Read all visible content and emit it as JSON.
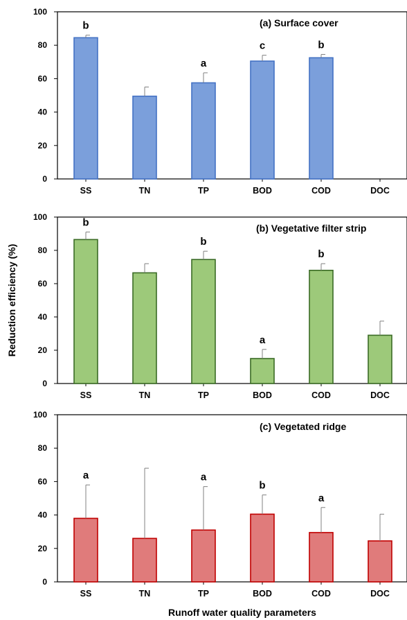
{
  "figure": {
    "ylabel": "Reduction efficiency (%)",
    "xlabel": "Runoff water quality parameters"
  },
  "chart_data": [
    {
      "type": "bar",
      "title": "(a) Surface cover",
      "categories": [
        "SS",
        "TN",
        "TP",
        "BOD",
        "COD",
        "DOC"
      ],
      "values": [
        84.5,
        49.5,
        57.5,
        70.5,
        72.5,
        null
      ],
      "errors": [
        1.5,
        5.5,
        6.0,
        3.5,
        2.0,
        null
      ],
      "significance": [
        "b",
        "",
        "a",
        "c",
        "b",
        ""
      ],
      "ylim": [
        0,
        100
      ],
      "yticks": [
        0,
        20,
        40,
        60,
        80,
        100
      ],
      "bar_color": "#7b9fdb",
      "bar_edge": "#4472c4"
    },
    {
      "type": "bar",
      "title": "(b) Vegetative filter strip",
      "categories": [
        "SS",
        "TN",
        "TP",
        "BOD",
        "COD",
        "DOC"
      ],
      "values": [
        86.5,
        66.5,
        74.5,
        15.0,
        68.0,
        29.0
      ],
      "errors": [
        4.5,
        5.5,
        5.0,
        5.5,
        4.0,
        8.5
      ],
      "significance": [
        "b",
        "",
        "b",
        "a",
        "b",
        ""
      ],
      "ylim": [
        0,
        100
      ],
      "yticks": [
        0,
        20,
        40,
        60,
        80,
        100
      ],
      "bar_color": "#9dc97a",
      "bar_edge": "#3a6b25"
    },
    {
      "type": "bar",
      "title": "(c) Vegetated ridge",
      "categories": [
        "SS",
        "TN",
        "TP",
        "BOD",
        "COD",
        "DOC"
      ],
      "values": [
        38.0,
        26.0,
        31.0,
        40.5,
        29.5,
        24.5
      ],
      "errors": [
        20.0,
        42.0,
        26.0,
        11.5,
        15.0,
        16.0
      ],
      "significance": [
        "a",
        "",
        "a",
        "b",
        "a",
        ""
      ],
      "ylim": [
        0,
        100
      ],
      "yticks": [
        0,
        20,
        40,
        60,
        80,
        100
      ],
      "bar_color": "#e07b7b",
      "bar_edge": "#c00000"
    }
  ]
}
